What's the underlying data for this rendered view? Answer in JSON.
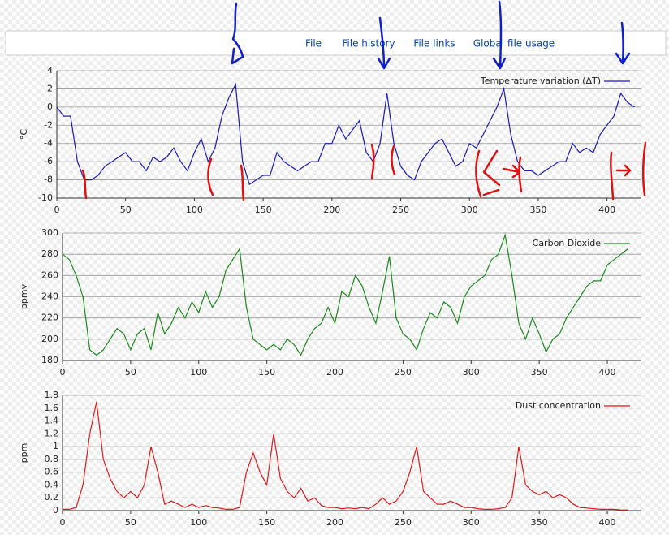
{
  "tabs": [
    "File",
    "File history",
    "File links",
    "Global file usage"
  ],
  "chart_data": [
    {
      "type": "line",
      "ylabel": "°C",
      "legend": "upper right",
      "grid": true,
      "x": [
        0,
        5,
        10,
        15,
        20,
        25,
        30,
        35,
        40,
        45,
        50,
        55,
        60,
        65,
        70,
        75,
        80,
        85,
        90,
        95,
        100,
        105,
        110,
        115,
        120,
        125,
        130,
        135,
        140,
        145,
        150,
        155,
        160,
        165,
        170,
        175,
        180,
        185,
        190,
        195,
        200,
        205,
        210,
        215,
        220,
        225,
        230,
        235,
        240,
        245,
        250,
        255,
        260,
        265,
        270,
        275,
        280,
        285,
        290,
        295,
        300,
        305,
        310,
        315,
        320,
        325,
        330,
        335,
        340,
        345,
        350,
        355,
        360,
        365,
        370,
        375,
        380,
        385,
        390,
        395,
        400,
        405,
        410,
        415,
        420
      ],
      "series": [
        {
          "name": "Temperature variation (ΔT)",
          "color": "#1a1ab8",
          "values": [
            0,
            -1,
            -1,
            -6,
            -8,
            -8,
            -7.5,
            -6.5,
            -6,
            -5.5,
            -5,
            -6,
            -6,
            -7,
            -5.5,
            -6,
            -5.5,
            -4.5,
            -6,
            -7,
            -5,
            -3.5,
            -6,
            -4.5,
            -1,
            1,
            2.5,
            -6,
            -8.5,
            -8,
            -7.5,
            -7.5,
            -5,
            -6,
            -6.5,
            -7,
            -6.5,
            -6,
            -6,
            -4,
            -4,
            -2,
            -3.5,
            -2.5,
            -1.5,
            -5,
            -6,
            -4,
            1.5,
            -4,
            -6.5,
            -7.5,
            -8,
            -6,
            -5,
            -4,
            -3.5,
            -5,
            -6.5,
            -6,
            -4,
            -4.5,
            -3,
            -1.5,
            0,
            2,
            -3,
            -6,
            -7,
            -7,
            -7.5,
            -7,
            -6.5,
            -6,
            -6,
            -4,
            -5,
            -4.5,
            -5,
            -3,
            -2,
            -1,
            1.5,
            0.5,
            0
          ]
        }
      ],
      "xlim": [
        0,
        425
      ],
      "ylim": [
        -10,
        4
      ],
      "xticks": [
        0,
        50,
        100,
        150,
        200,
        250,
        300,
        350,
        400
      ],
      "yticks": [
        -10,
        -8,
        -6,
        -4,
        -2,
        0,
        2,
        4
      ]
    },
    {
      "type": "line",
      "ylabel": "ppmv",
      "legend": "upper right",
      "grid": true,
      "x": [
        0,
        5,
        10,
        15,
        20,
        25,
        30,
        35,
        40,
        45,
        50,
        55,
        60,
        65,
        70,
        75,
        80,
        85,
        90,
        95,
        100,
        105,
        110,
        115,
        120,
        125,
        130,
        135,
        140,
        145,
        150,
        155,
        160,
        165,
        170,
        175,
        180,
        185,
        190,
        195,
        200,
        205,
        210,
        215,
        220,
        225,
        230,
        235,
        240,
        245,
        250,
        255,
        260,
        265,
        270,
        275,
        280,
        285,
        290,
        295,
        300,
        305,
        310,
        315,
        320,
        325,
        330,
        335,
        340,
        345,
        350,
        355,
        360,
        365,
        370,
        375,
        380,
        385,
        390,
        395,
        400,
        405,
        410,
        415
      ],
      "series": [
        {
          "name": "Carbon Dioxide",
          "color": "#1a8a1a",
          "values": [
            280,
            275,
            260,
            240,
            190,
            185,
            190,
            200,
            210,
            205,
            190,
            205,
            210,
            190,
            225,
            205,
            215,
            230,
            220,
            235,
            225,
            245,
            230,
            240,
            265,
            275,
            285,
            230,
            200,
            195,
            190,
            195,
            190,
            200,
            195,
            185,
            200,
            210,
            215,
            230,
            215,
            245,
            240,
            260,
            250,
            230,
            215,
            245,
            278,
            220,
            205,
            200,
            190,
            210,
            225,
            220,
            235,
            230,
            215,
            240,
            250,
            255,
            260,
            275,
            280,
            298,
            260,
            215,
            200,
            220,
            205,
            188,
            200,
            205,
            220,
            230,
            240,
            250,
            255,
            255,
            270,
            275,
            280,
            285
          ]
        }
      ],
      "xlim": [
        0,
        425
      ],
      "ylim": [
        180,
        300
      ],
      "xticks": [
        0,
        50,
        100,
        150,
        200,
        250,
        300,
        350,
        400
      ],
      "yticks": [
        180,
        200,
        220,
        240,
        260,
        280,
        300
      ]
    },
    {
      "type": "line",
      "ylabel": "ppm",
      "legend": "upper right",
      "grid": true,
      "x": [
        0,
        5,
        10,
        15,
        20,
        25,
        30,
        35,
        40,
        45,
        50,
        55,
        60,
        65,
        70,
        75,
        80,
        85,
        90,
        95,
        100,
        105,
        110,
        115,
        120,
        125,
        130,
        135,
        140,
        145,
        150,
        155,
        160,
        165,
        170,
        175,
        180,
        185,
        190,
        195,
        200,
        205,
        210,
        215,
        220,
        225,
        230,
        235,
        240,
        245,
        250,
        255,
        260,
        265,
        270,
        275,
        280,
        285,
        290,
        295,
        300,
        305,
        310,
        315,
        320,
        325,
        330,
        335,
        340,
        345,
        350,
        355,
        360,
        365,
        370,
        375,
        380,
        385,
        390,
        395,
        400,
        405,
        410,
        415
      ],
      "series": [
        {
          "name": "Dust concentration",
          "color": "#e01818",
          "values": [
            0.02,
            0.02,
            0.05,
            0.4,
            1.2,
            1.7,
            0.8,
            0.5,
            0.3,
            0.2,
            0.3,
            0.2,
            0.4,
            1.0,
            0.6,
            0.1,
            0.15,
            0.1,
            0.05,
            0.1,
            0.05,
            0.08,
            0.05,
            0.04,
            0.02,
            0.02,
            0.05,
            0.6,
            0.9,
            0.6,
            0.4,
            1.2,
            0.5,
            0.3,
            0.2,
            0.35,
            0.15,
            0.2,
            0.08,
            0.05,
            0.05,
            0.03,
            0.04,
            0.03,
            0.05,
            0.03,
            0.1,
            0.2,
            0.1,
            0.15,
            0.3,
            0.6,
            1.0,
            0.3,
            0.2,
            0.1,
            0.1,
            0.15,
            0.1,
            0.05,
            0.05,
            0.03,
            0.02,
            0.02,
            0.03,
            0.05,
            0.2,
            1.0,
            0.4,
            0.3,
            0.25,
            0.3,
            0.2,
            0.25,
            0.2,
            0.1,
            0.05,
            0.04,
            0.03,
            0.02,
            0.02,
            0.02,
            0.01,
            0.01
          ]
        }
      ],
      "xlim": [
        0,
        425
      ],
      "ylim": [
        0,
        1.8
      ],
      "xticks": [
        0,
        50,
        100,
        150,
        200,
        250,
        300,
        350,
        400
      ],
      "yticks": [
        0,
        0.2,
        0.4,
        0.6,
        0.8,
        1,
        1.2,
        1.4,
        1.6,
        1.8
      ]
    }
  ]
}
